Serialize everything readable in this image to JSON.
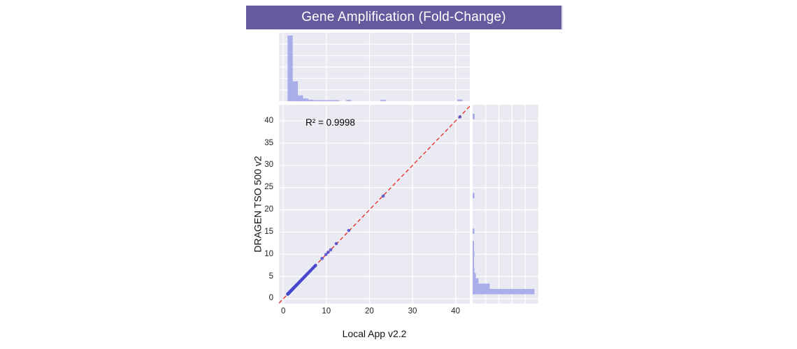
{
  "title": "Gene Amplification (Fold-Change)",
  "annotation": {
    "r_squared": "R² = 0.9998"
  },
  "colors": {
    "banner_bg": "#665a9f",
    "banner_text": "#ffffff",
    "panel_bg": "#eaeaf2",
    "grid": "#ffffff",
    "bar_fill": "#a9ade9",
    "point_fill": "#4647d0",
    "line_color": "#e8352b",
    "text_color": "#1c1c1c"
  },
  "chart_data": {
    "type": "scatter",
    "title": "Gene Amplification (Fold-Change)",
    "xlabel": "Local App v2.2",
    "ylabel": "DRAGEN TSO 500 v2",
    "xlim": [
      -1.0,
      43.3
    ],
    "ylim": [
      -1.1,
      43.65
    ],
    "x_ticks": [
      0,
      10,
      20,
      30,
      40
    ],
    "y_ticks": [
      0,
      5,
      10,
      15,
      20,
      25,
      30,
      35,
      40
    ],
    "grid": true,
    "legend": null,
    "annotation_r_squared": 0.9998,
    "identity_line": {
      "style": "dashed",
      "color": "#e8352b",
      "from": -1.0,
      "to": 43.3
    },
    "points": [
      [
        1.02,
        1.02
      ],
      [
        1.05,
        1.06
      ],
      [
        1.08,
        1.07
      ],
      [
        1.1,
        1.1
      ],
      [
        1.12,
        1.13
      ],
      [
        1.15,
        1.14
      ],
      [
        1.18,
        1.18
      ],
      [
        1.2,
        1.21
      ],
      [
        1.22,
        1.22
      ],
      [
        1.25,
        1.24
      ],
      [
        1.28,
        1.28
      ],
      [
        1.3,
        1.31
      ],
      [
        1.33,
        1.32
      ],
      [
        1.36,
        1.36
      ],
      [
        1.4,
        1.39
      ],
      [
        1.43,
        1.44
      ],
      [
        1.46,
        1.46
      ],
      [
        1.5,
        1.5
      ],
      [
        1.53,
        1.54
      ],
      [
        1.57,
        1.56
      ],
      [
        1.6,
        1.61
      ],
      [
        1.64,
        1.63
      ],
      [
        1.68,
        1.68
      ],
      [
        1.72,
        1.73
      ],
      [
        1.76,
        1.75
      ],
      [
        1.8,
        1.81
      ],
      [
        1.85,
        1.84
      ],
      [
        1.9,
        1.9
      ],
      [
        1.95,
        1.96
      ],
      [
        2.0,
        1.99
      ],
      [
        2.05,
        2.06
      ],
      [
        2.1,
        2.1
      ],
      [
        2.16,
        2.15
      ],
      [
        2.22,
        2.23
      ],
      [
        2.28,
        2.28
      ],
      [
        2.35,
        2.34
      ],
      [
        2.42,
        2.43
      ],
      [
        2.5,
        2.49
      ],
      [
        2.58,
        2.59
      ],
      [
        2.66,
        2.65
      ],
      [
        2.75,
        2.76
      ],
      [
        2.84,
        2.83
      ],
      [
        2.93,
        2.94
      ],
      [
        3.02,
        3.02
      ],
      [
        3.12,
        3.11
      ],
      [
        3.22,
        3.23
      ],
      [
        3.32,
        3.32
      ],
      [
        3.43,
        3.44
      ],
      [
        3.54,
        3.53
      ],
      [
        3.65,
        3.66
      ],
      [
        3.77,
        3.76
      ],
      [
        3.89,
        3.9
      ],
      [
        4.01,
        4.0
      ],
      [
        4.14,
        4.15
      ],
      [
        4.27,
        4.27
      ],
      [
        4.4,
        4.39
      ],
      [
        4.54,
        4.55
      ],
      [
        4.68,
        4.68
      ],
      [
        4.83,
        4.82
      ],
      [
        4.98,
        4.99
      ],
      [
        5.13,
        5.13
      ],
      [
        5.29,
        5.3
      ],
      [
        5.45,
        5.44
      ],
      [
        5.62,
        5.63
      ],
      [
        5.79,
        5.79
      ],
      [
        5.97,
        5.96
      ],
      [
        6.15,
        6.16
      ],
      [
        6.34,
        6.33
      ],
      [
        6.53,
        6.54
      ],
      [
        6.73,
        6.73
      ],
      [
        6.93,
        6.92
      ],
      [
        7.14,
        7.15
      ],
      [
        7.36,
        7.35
      ],
      [
        7.5,
        7.52
      ],
      [
        9.0,
        9.05
      ],
      [
        9.9,
        9.95
      ],
      [
        10.4,
        10.45
      ],
      [
        11.0,
        11.0
      ],
      [
        12.3,
        12.4
      ],
      [
        15.2,
        15.35
      ],
      [
        23.2,
        23.1
      ],
      [
        41.0,
        40.9
      ]
    ],
    "marginal_top_histogram": {
      "orientation": "vertical",
      "bins": [
        {
          "x0": 1.0,
          "x1": 2.2,
          "h": 0.96
        },
        {
          "x0": 2.2,
          "x1": 3.4,
          "h": 0.29
        },
        {
          "x0": 3.4,
          "x1": 4.6,
          "h": 0.085
        },
        {
          "x0": 4.6,
          "x1": 5.8,
          "h": 0.04
        },
        {
          "x0": 5.8,
          "x1": 7.0,
          "h": 0.022
        },
        {
          "x0": 7.0,
          "x1": 8.2,
          "h": 0.016
        },
        {
          "x0": 8.2,
          "x1": 9.4,
          "h": 0.016
        },
        {
          "x0": 9.4,
          "x1": 10.6,
          "h": 0.016
        },
        {
          "x0": 10.6,
          "x1": 11.8,
          "h": 0.016
        },
        {
          "x0": 11.8,
          "x1": 13.0,
          "h": 0.016
        },
        {
          "x0": 14.6,
          "x1": 15.8,
          "h": 0.02
        },
        {
          "x0": 22.6,
          "x1": 23.8,
          "h": 0.02
        },
        {
          "x0": 40.4,
          "x1": 41.6,
          "h": 0.025
        }
      ]
    },
    "marginal_right_histogram": {
      "orientation": "horizontal",
      "bins": [
        {
          "x0": 1.0,
          "x1": 2.2,
          "h": 0.94
        },
        {
          "x0": 2.2,
          "x1": 3.4,
          "h": 0.26
        },
        {
          "x0": 3.4,
          "x1": 4.6,
          "h": 0.09
        },
        {
          "x0": 4.6,
          "x1": 5.8,
          "h": 0.05
        },
        {
          "x0": 5.8,
          "x1": 7.0,
          "h": 0.028
        },
        {
          "x0": 7.0,
          "x1": 8.2,
          "h": 0.022
        },
        {
          "x0": 8.2,
          "x1": 9.4,
          "h": 0.022
        },
        {
          "x0": 9.4,
          "x1": 10.6,
          "h": 0.028
        },
        {
          "x0": 10.6,
          "x1": 11.8,
          "h": 0.022
        },
        {
          "x0": 11.8,
          "x1": 13.0,
          "h": 0.022
        },
        {
          "x0": 14.6,
          "x1": 15.8,
          "h": 0.028
        },
        {
          "x0": 22.6,
          "x1": 23.8,
          "h": 0.028
        },
        {
          "x0": 40.4,
          "x1": 41.6,
          "h": 0.032
        }
      ]
    }
  }
}
